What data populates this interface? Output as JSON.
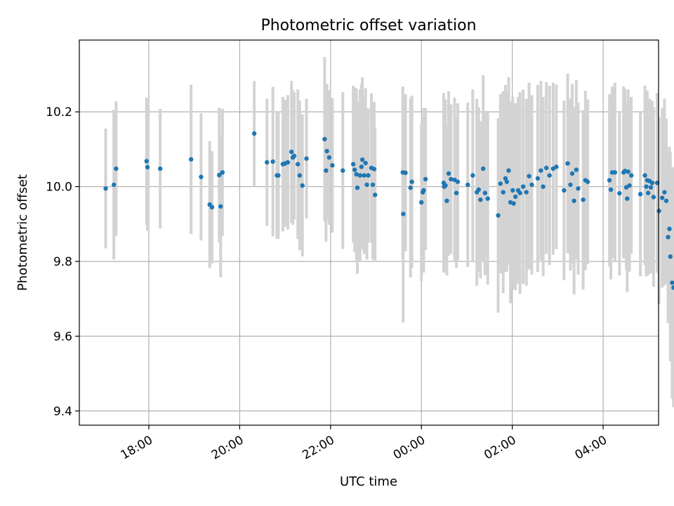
{
  "chart_data": {
    "type": "scatter",
    "title": "Photometric offset variation",
    "xlabel": "UTC time",
    "ylabel": "Photometric offset",
    "x_unit": "hours (UTC)",
    "xlim": [
      16.47,
      29.22
    ],
    "ylim": [
      9.362,
      10.392
    ],
    "grid": true,
    "x_ticks": [
      {
        "value": 18,
        "label": "18:00"
      },
      {
        "value": 20,
        "label": "20:00"
      },
      {
        "value": 22,
        "label": "22:00"
      },
      {
        "value": 24,
        "label": "00:00"
      },
      {
        "value": 26,
        "label": "02:00"
      },
      {
        "value": 28,
        "label": "04:00"
      }
    ],
    "y_ticks": [
      {
        "value": 9.4,
        "label": "9.4"
      },
      {
        "value": 9.6,
        "label": "9.6"
      },
      {
        "value": 9.8,
        "label": "9.8"
      },
      {
        "value": 10.0,
        "label": "10.0"
      },
      {
        "value": 10.2,
        "label": "10.2"
      }
    ],
    "colors": {
      "points": "#1f77b4",
      "errorbars": "#d3d3d3",
      "grid": "#b0b0b0"
    },
    "points": [
      [
        17.05,
        9.995,
        0.16
      ],
      [
        17.23,
        10.005,
        0.2
      ],
      [
        17.28,
        10.048,
        0.18
      ],
      [
        17.95,
        10.068,
        0.17
      ],
      [
        17.97,
        10.052,
        0.17
      ],
      [
        18.25,
        10.048,
        0.16
      ],
      [
        18.93,
        10.073,
        0.2
      ],
      [
        19.15,
        10.026,
        0.17
      ],
      [
        19.34,
        9.952,
        0.17
      ],
      [
        19.39,
        9.945,
        0.15
      ],
      [
        19.55,
        10.031,
        0.18
      ],
      [
        19.58,
        9.947,
        0.19
      ],
      [
        19.62,
        10.038,
        0.17
      ],
      [
        20.32,
        10.142,
        0.14
      ],
      [
        20.6,
        10.065,
        0.17
      ],
      [
        20.73,
        10.067,
        0.2
      ],
      [
        20.82,
        10.03,
        0.17
      ],
      [
        20.85,
        10.03,
        0.17
      ],
      [
        20.95,
        10.06,
        0.18
      ],
      [
        21.0,
        10.062,
        0.17
      ],
      [
        21.06,
        10.065,
        0.18
      ],
      [
        21.14,
        10.093,
        0.19
      ],
      [
        21.17,
        10.078,
        0.18
      ],
      [
        21.2,
        10.082,
        0.17
      ],
      [
        21.28,
        10.06,
        0.2
      ],
      [
        21.32,
        10.03,
        0.2
      ],
      [
        21.38,
        10.003,
        0.19
      ],
      [
        21.47,
        10.075,
        0.16
      ],
      [
        21.87,
        10.127,
        0.22
      ],
      [
        21.9,
        10.043,
        0.19
      ],
      [
        21.92,
        10.095,
        0.18
      ],
      [
        21.97,
        10.078,
        0.18
      ],
      [
        22.04,
        10.057,
        0.18
      ],
      [
        22.27,
        10.043,
        0.21
      ],
      [
        22.5,
        10.06,
        0.21
      ],
      [
        22.53,
        10.045,
        0.22
      ],
      [
        22.57,
        10.033,
        0.23
      ],
      [
        22.59,
        9.997,
        0.23
      ],
      [
        22.65,
        10.03,
        0.23
      ],
      [
        22.68,
        10.053,
        0.22
      ],
      [
        22.7,
        10.072,
        0.22
      ],
      [
        22.74,
        10.03,
        0.21
      ],
      [
        22.77,
        10.063,
        0.2
      ],
      [
        22.8,
        10.005,
        0.2
      ],
      [
        22.83,
        10.03,
        0.18
      ],
      [
        22.9,
        10.05,
        0.2
      ],
      [
        22.93,
        10.005,
        0.2
      ],
      [
        22.96,
        10.047,
        0.18
      ],
      [
        22.98,
        9.978,
        0.18
      ],
      [
        23.59,
        10.038,
        0.23
      ],
      [
        23.6,
        9.927,
        0.29
      ],
      [
        23.65,
        10.037,
        0.21
      ],
      [
        23.76,
        9.997,
        0.24
      ],
      [
        23.79,
        10.013,
        0.23
      ],
      [
        24.0,
        9.958,
        0.21
      ],
      [
        24.03,
        9.985,
        0.2
      ],
      [
        24.05,
        9.99,
        0.22
      ],
      [
        24.09,
        10.02,
        0.19
      ],
      [
        24.49,
        10.01,
        0.24
      ],
      [
        24.5,
        10.0,
        0.22
      ],
      [
        24.53,
        10.003,
        0.23
      ],
      [
        24.56,
        9.962,
        0.2
      ],
      [
        24.6,
        10.035,
        0.22
      ],
      [
        24.65,
        10.02,
        0.2
      ],
      [
        24.73,
        10.018,
        0.22
      ],
      [
        24.77,
        9.983,
        0.2
      ],
      [
        24.8,
        10.013,
        0.21
      ],
      [
        25.02,
        10.005,
        0.22
      ],
      [
        25.13,
        10.03,
        0.23
      ],
      [
        25.22,
        9.985,
        0.25
      ],
      [
        25.26,
        9.992,
        0.22
      ],
      [
        25.3,
        9.965,
        0.21
      ],
      [
        25.36,
        10.048,
        0.25
      ],
      [
        25.4,
        9.983,
        0.22
      ],
      [
        25.46,
        9.968,
        0.23
      ],
      [
        25.69,
        9.923,
        0.26
      ],
      [
        25.74,
        10.008,
        0.24
      ],
      [
        25.8,
        9.985,
        0.27
      ],
      [
        25.85,
        10.022,
        0.25
      ],
      [
        25.88,
        10.013,
        0.24
      ],
      [
        25.92,
        10.043,
        0.25
      ],
      [
        25.96,
        9.958,
        0.27
      ],
      [
        26.01,
        9.99,
        0.25
      ],
      [
        26.03,
        9.955,
        0.23
      ],
      [
        26.07,
        9.973,
        0.25
      ],
      [
        26.13,
        9.99,
        0.25
      ],
      [
        26.17,
        9.983,
        0.27
      ],
      [
        26.24,
        10.0,
        0.26
      ],
      [
        26.31,
        9.985,
        0.25
      ],
      [
        26.37,
        10.028,
        0.25
      ],
      [
        26.43,
        10.005,
        0.24
      ],
      [
        26.56,
        10.022,
        0.25
      ],
      [
        26.63,
        10.043,
        0.24
      ],
      [
        26.68,
        10.0,
        0.24
      ],
      [
        26.75,
        10.05,
        0.23
      ],
      [
        26.82,
        10.03,
        0.24
      ],
      [
        26.9,
        10.048,
        0.23
      ],
      [
        26.97,
        10.053,
        0.22
      ],
      [
        27.14,
        9.99,
        0.24
      ],
      [
        27.22,
        10.062,
        0.24
      ],
      [
        27.28,
        10.005,
        0.23
      ],
      [
        27.32,
        10.035,
        0.24
      ],
      [
        27.36,
        9.962,
        0.25
      ],
      [
        27.41,
        10.045,
        0.24
      ],
      [
        27.45,
        9.995,
        0.23
      ],
      [
        27.56,
        9.965,
        0.24
      ],
      [
        27.61,
        10.017,
        0.24
      ],
      [
        27.66,
        10.013,
        0.22
      ],
      [
        28.14,
        10.017,
        0.23
      ],
      [
        28.17,
        9.992,
        0.24
      ],
      [
        28.2,
        10.038,
        0.23
      ],
      [
        28.26,
        10.038,
        0.24
      ],
      [
        28.36,
        9.982,
        0.22
      ],
      [
        28.45,
        10.038,
        0.23
      ],
      [
        28.48,
        10.042,
        0.22
      ],
      [
        28.51,
        9.998,
        0.22
      ],
      [
        28.53,
        9.968,
        0.25
      ],
      [
        28.55,
        10.04,
        0.22
      ],
      [
        28.58,
        10.003,
        0.23
      ],
      [
        28.62,
        10.03,
        0.21
      ],
      [
        28.82,
        9.98,
        0.22
      ],
      [
        28.92,
        10.03,
        0.24
      ],
      [
        28.95,
        10.0,
        0.24
      ],
      [
        28.97,
        10.017,
        0.24
      ],
      [
        28.99,
        9.983,
        0.22
      ],
      [
        29.02,
        10.015,
        0.22
      ],
      [
        29.05,
        9.998,
        0.23
      ],
      [
        29.08,
        10.01,
        0.22
      ],
      [
        29.11,
        9.972,
        0.24
      ],
      [
        29.19,
        10.01,
        0.24
      ],
      [
        29.23,
        9.935,
        0.25
      ],
      [
        29.3,
        9.97,
        0.24
      ],
      [
        29.35,
        9.985,
        0.25
      ],
      [
        29.39,
        9.962,
        0.22
      ],
      [
        29.43,
        9.865,
        0.23
      ],
      [
        29.46,
        9.887,
        0.22
      ],
      [
        29.48,
        9.813,
        0.28
      ],
      [
        29.52,
        9.743,
        0.31
      ],
      [
        29.55,
        9.73,
        0.32
      ]
    ]
  }
}
